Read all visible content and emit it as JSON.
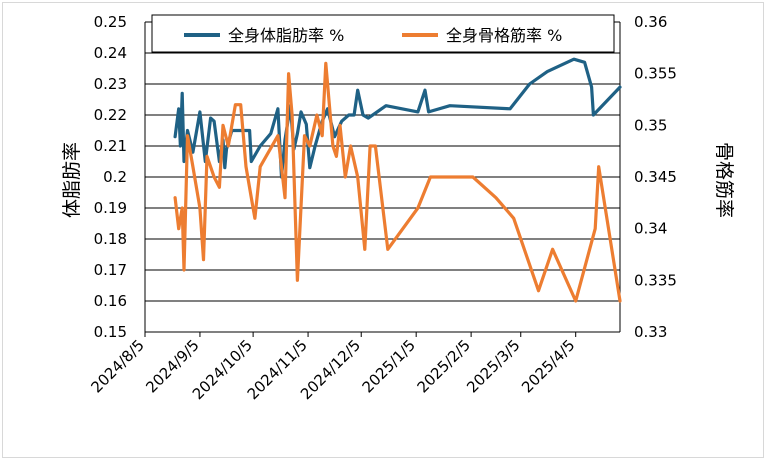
{
  "chart_data": {
    "type": "line",
    "title": "",
    "left_axis": {
      "label": "体脂肪率",
      "ylim": [
        0.15,
        0.25
      ],
      "ticks": [
        "0.15",
        "0.16",
        "0.17",
        "0.18",
        "0.19",
        "0.2",
        "0.21",
        "0.22",
        "0.23",
        "0.24",
        "0.25"
      ]
    },
    "right_axis": {
      "label": "骨格筋率",
      "ylim": [
        0.33,
        0.36
      ],
      "ticks": [
        "0.33",
        "0.335",
        "0.34",
        "0.345",
        "0.35",
        "0.355",
        "0.36"
      ]
    },
    "x_axis": {
      "label": "",
      "range": [
        "2024-08-05",
        "2025-04-30"
      ],
      "ticks": [
        "2024/8/5",
        "2024/9/5",
        "2024/10/5",
        "2024/11/5",
        "2024/12/5",
        "2025/1/5",
        "2025/2/5",
        "2025/3/5",
        "2025/4/5"
      ]
    },
    "grid": "horizontal",
    "legend_position": "top",
    "series": [
      {
        "name": "全身体脂肪率 %",
        "axis": "left",
        "color": "#1f6185",
        "points": [
          [
            "2024-08-22",
            0.213
          ],
          [
            "2024-08-24",
            0.222
          ],
          [
            "2024-08-25",
            0.21
          ],
          [
            "2024-08-26",
            0.227
          ],
          [
            "2024-08-27",
            0.205
          ],
          [
            "2024-08-29",
            0.215
          ],
          [
            "2024-09-01",
            0.208
          ],
          [
            "2024-09-05",
            0.221
          ],
          [
            "2024-09-08",
            0.205
          ],
          [
            "2024-09-11",
            0.219
          ],
          [
            "2024-09-13",
            0.218
          ],
          [
            "2024-09-16",
            0.205
          ],
          [
            "2024-09-18",
            0.212
          ],
          [
            "2024-09-19",
            0.203
          ],
          [
            "2024-09-20",
            0.209
          ],
          [
            "2024-09-23",
            0.215
          ],
          [
            "2024-10-01",
            0.215
          ],
          [
            "2024-10-03",
            0.215
          ],
          [
            "2024-10-04",
            0.205
          ],
          [
            "2024-10-09",
            0.21
          ],
          [
            "2024-10-15",
            0.214
          ],
          [
            "2024-10-19",
            0.222
          ],
          [
            "2024-10-21",
            0.2
          ],
          [
            "2024-10-23",
            0.212
          ],
          [
            "2024-10-26",
            0.223
          ],
          [
            "2024-10-28",
            0.209
          ],
          [
            "2024-10-30",
            0.214
          ],
          [
            "2024-11-01",
            0.221
          ],
          [
            "2024-11-04",
            0.217
          ],
          [
            "2024-11-06",
            0.203
          ],
          [
            "2024-11-09",
            0.21
          ],
          [
            "2024-11-13",
            0.218
          ],
          [
            "2024-11-16",
            0.222
          ],
          [
            "2024-11-20",
            0.213
          ],
          [
            "2024-11-24",
            0.218
          ],
          [
            "2024-11-28",
            0.22
          ],
          [
            "2024-12-01",
            0.22
          ],
          [
            "2024-12-03",
            0.228
          ],
          [
            "2024-12-06",
            0.22
          ],
          [
            "2024-12-09",
            0.219
          ],
          [
            "2024-12-19",
            0.223
          ],
          [
            "2025-01-06",
            0.221
          ],
          [
            "2025-01-10",
            0.228
          ],
          [
            "2025-01-12",
            0.221
          ],
          [
            "2025-01-24",
            0.223
          ],
          [
            "2025-02-27",
            0.222
          ],
          [
            "2025-03-10",
            0.23
          ],
          [
            "2025-03-20",
            0.234
          ],
          [
            "2025-04-04",
            0.238
          ],
          [
            "2025-04-10",
            0.237
          ],
          [
            "2025-04-14",
            0.229
          ],
          [
            "2025-04-15",
            0.22
          ],
          [
            "2025-04-30",
            0.229
          ]
        ]
      },
      {
        "name": "全身骨格筋率 %",
        "axis": "right",
        "color": "#ed7d31",
        "points": [
          [
            "2024-08-22",
            0.343
          ],
          [
            "2024-08-24",
            0.34
          ],
          [
            "2024-08-26",
            0.342
          ],
          [
            "2024-08-27",
            0.336
          ],
          [
            "2024-08-29",
            0.349
          ],
          [
            "2024-09-01",
            0.346
          ],
          [
            "2024-09-05",
            0.342
          ],
          [
            "2024-09-07",
            0.337
          ],
          [
            "2024-09-09",
            0.347
          ],
          [
            "2024-09-13",
            0.345
          ],
          [
            "2024-09-16",
            0.344
          ],
          [
            "2024-09-18",
            0.35
          ],
          [
            "2024-09-21",
            0.348
          ],
          [
            "2024-09-25",
            0.352
          ],
          [
            "2024-09-28",
            0.352
          ],
          [
            "2024-10-01",
            0.346
          ],
          [
            "2024-10-04",
            0.343
          ],
          [
            "2024-10-06",
            0.341
          ],
          [
            "2024-10-09",
            0.346
          ],
          [
            "2024-10-19",
            0.349
          ],
          [
            "2024-10-23",
            0.343
          ],
          [
            "2024-10-25",
            0.355
          ],
          [
            "2024-10-27",
            0.351
          ],
          [
            "2024-10-30",
            0.335
          ],
          [
            "2024-11-03",
            0.349
          ],
          [
            "2024-11-06",
            0.348
          ],
          [
            "2024-11-10",
            0.351
          ],
          [
            "2024-11-13",
            0.349
          ],
          [
            "2024-11-15",
            0.356
          ],
          [
            "2024-11-19",
            0.348
          ],
          [
            "2024-11-21",
            0.347
          ],
          [
            "2024-11-23",
            0.35
          ],
          [
            "2024-11-26",
            0.345
          ],
          [
            "2024-11-29",
            0.348
          ],
          [
            "2024-12-03",
            0.345
          ],
          [
            "2024-12-07",
            0.338
          ],
          [
            "2024-12-10",
            0.348
          ],
          [
            "2024-12-13",
            0.348
          ],
          [
            "2024-12-20",
            0.338
          ],
          [
            "2025-01-06",
            0.342
          ],
          [
            "2025-01-13",
            0.345
          ],
          [
            "2025-01-25",
            0.345
          ],
          [
            "2025-02-06",
            0.345
          ],
          [
            "2025-02-19",
            0.343
          ],
          [
            "2025-03-01",
            0.341
          ],
          [
            "2025-03-15",
            0.334
          ],
          [
            "2025-03-23",
            0.338
          ],
          [
            "2025-04-05",
            0.333
          ],
          [
            "2025-04-16",
            0.34
          ],
          [
            "2025-04-18",
            0.346
          ],
          [
            "2025-04-30",
            0.333
          ]
        ]
      }
    ]
  }
}
